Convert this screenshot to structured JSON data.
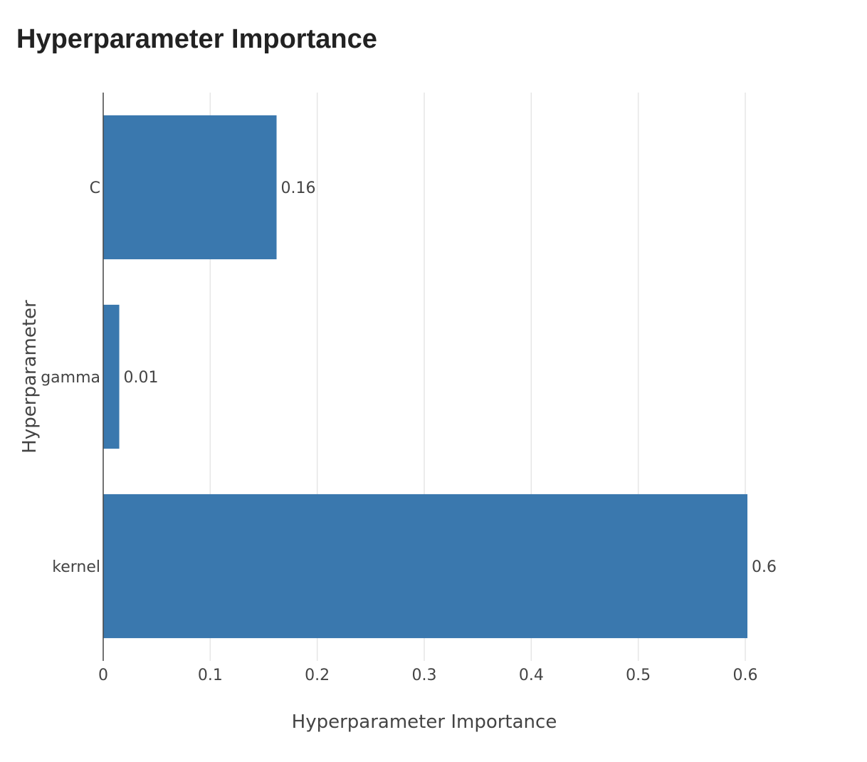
{
  "chart_data": {
    "type": "bar",
    "orientation": "horizontal",
    "title": "Hyperparameter Importance",
    "xlabel": "Hyperparameter Importance",
    "ylabel": "Hyperparameter",
    "categories": [
      "C",
      "gamma",
      "kernel"
    ],
    "values": [
      0.162,
      0.015,
      0.602
    ],
    "data_labels": [
      "0.16",
      "0.01",
      "0.6"
    ],
    "xlim": [
      0,
      0.6
    ],
    "xticks": [
      0,
      0.1,
      0.2,
      0.3,
      0.4,
      0.5,
      0.6
    ],
    "xtick_labels": [
      "0",
      "0.1",
      "0.2",
      "0.3",
      "0.4",
      "0.5",
      "0.6"
    ],
    "bar_color": "#3a78ae",
    "grid": true,
    "legend": false
  }
}
